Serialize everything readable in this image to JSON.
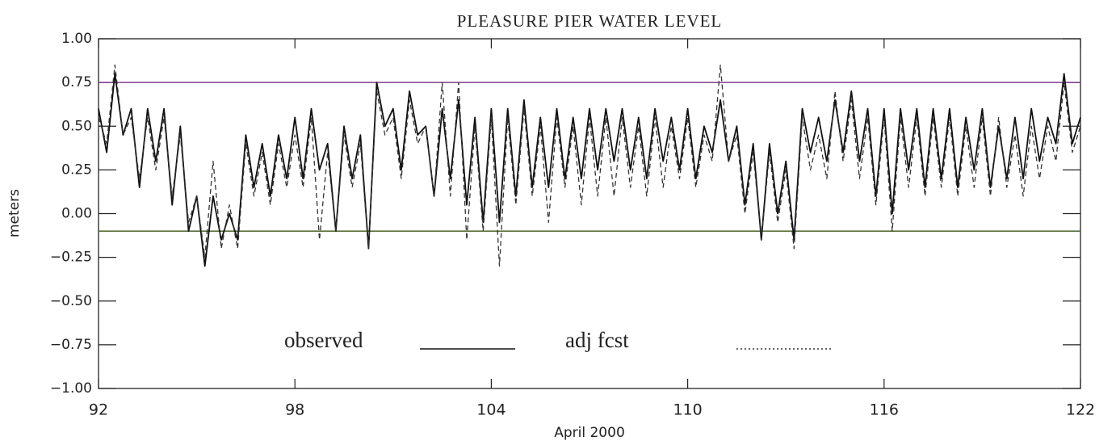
{
  "chart_data": {
    "type": "line",
    "title": "PLEASURE PIER WATER LEVEL",
    "x_label": "April 2000",
    "y_label": "meters",
    "xlim": [
      92,
      122
    ],
    "xticks": [
      92,
      98,
      104,
      110,
      116,
      122
    ],
    "ylim": [
      -1,
      1
    ],
    "yticks": [
      {
        "value": -1,
        "label": "−1.00"
      },
      {
        "value": -0.75,
        "label": "−0.75"
      },
      {
        "value": -0.5,
        "label": "−0.50"
      },
      {
        "value": -0.25,
        "label": "−0.25"
      },
      {
        "value": 0,
        "label": "0.00"
      },
      {
        "value": 0.25,
        "label": "0.25"
      },
      {
        "value": 0.5,
        "label": "0.50"
      },
      {
        "value": 0.75,
        "label": "0.75"
      },
      {
        "value": 1,
        "label": "1.00"
      }
    ],
    "reference_lines": [
      {
        "value": 0.75,
        "color": "#7b3f8c"
      },
      {
        "value": -0.1,
        "color": "#5a6e3a"
      }
    ],
    "legend": "lower center",
    "x": [
      92,
      92.25,
      92.5,
      92.75,
      93,
      93.25,
      93.5,
      93.75,
      94,
      94.25,
      94.5,
      94.75,
      95,
      95.25,
      95.5,
      95.75,
      96,
      96.25,
      96.5,
      96.75,
      97,
      97.25,
      97.5,
      97.75,
      98,
      98.25,
      98.5,
      98.75,
      99,
      99.25,
      99.5,
      99.75,
      100,
      100.25,
      100.5,
      100.75,
      101,
      101.25,
      101.5,
      101.75,
      102,
      102.25,
      102.5,
      102.75,
      103,
      103.25,
      103.5,
      103.75,
      104,
      104.25,
      104.5,
      104.75,
      105,
      105.25,
      105.5,
      105.75,
      106,
      106.25,
      106.5,
      106.75,
      107,
      107.25,
      107.5,
      107.75,
      108,
      108.25,
      108.5,
      108.75,
      109,
      109.25,
      109.5,
      109.75,
      110,
      110.25,
      110.5,
      110.75,
      111,
      111.25,
      111.5,
      111.75,
      112,
      112.25,
      112.5,
      112.75,
      113,
      113.25,
      113.5,
      113.75,
      114,
      114.25,
      114.5,
      114.75,
      115,
      115.25,
      115.5,
      115.75,
      116,
      116.25,
      116.5,
      116.75,
      117,
      117.25,
      117.5,
      117.75,
      118,
      118.25,
      118.5,
      118.75,
      119,
      119.25,
      119.5,
      119.75,
      120,
      120.25,
      120.5,
      120.75,
      121,
      121.25,
      121.5,
      121.75,
      122
    ],
    "series": [
      {
        "name": "observed",
        "color": "#111111",
        "dash": "solid",
        "values": [
          0.6,
          0.35,
          0.8,
          0.45,
          0.6,
          0.15,
          0.6,
          0.3,
          0.6,
          0.05,
          0.5,
          -0.1,
          0.1,
          -0.3,
          0.1,
          -0.15,
          0.0,
          -0.15,
          0.45,
          0.15,
          0.4,
          0.1,
          0.45,
          0.2,
          0.55,
          0.2,
          0.6,
          0.25,
          0.4,
          -0.1,
          0.5,
          0.2,
          0.45,
          -0.2,
          0.75,
          0.5,
          0.6,
          0.25,
          0.7,
          0.45,
          0.5,
          0.1,
          0.6,
          0.2,
          0.65,
          0.05,
          0.55,
          -0.05,
          0.6,
          -0.05,
          0.6,
          0.1,
          0.65,
          0.15,
          0.55,
          0.15,
          0.6,
          0.2,
          0.55,
          0.2,
          0.6,
          0.25,
          0.6,
          0.3,
          0.6,
          0.25,
          0.55,
          0.2,
          0.6,
          0.3,
          0.55,
          0.25,
          0.6,
          0.2,
          0.5,
          0.35,
          0.65,
          0.3,
          0.5,
          0.05,
          0.4,
          -0.15,
          0.4,
          0.0,
          0.3,
          -0.15,
          0.6,
          0.35,
          0.55,
          0.3,
          0.65,
          0.35,
          0.7,
          0.3,
          0.6,
          0.1,
          0.6,
          0.0,
          0.6,
          0.25,
          0.6,
          0.15,
          0.6,
          0.2,
          0.6,
          0.15,
          0.55,
          0.25,
          0.6,
          0.15,
          0.5,
          0.2,
          0.55,
          0.2,
          0.6,
          0.3,
          0.55,
          0.4,
          0.8,
          0.4,
          0.55
        ]
      },
      {
        "name": "adj fcst",
        "color": "#333333",
        "dash": "dashed",
        "values": [
          0.55,
          0.4,
          0.85,
          0.45,
          0.55,
          0.2,
          0.55,
          0.25,
          0.55,
          0.1,
          0.45,
          -0.05,
          0.1,
          -0.25,
          0.3,
          -0.2,
          0.05,
          -0.2,
          0.4,
          0.1,
          0.35,
          0.05,
          0.4,
          0.15,
          0.45,
          0.15,
          0.55,
          -0.15,
          0.35,
          -0.1,
          0.45,
          0.15,
          0.4,
          -0.2,
          0.7,
          0.45,
          0.55,
          0.2,
          0.65,
          0.4,
          0.5,
          0.1,
          0.75,
          0.1,
          0.75,
          -0.15,
          0.5,
          -0.1,
          0.55,
          -0.3,
          0.55,
          0.05,
          0.6,
          0.1,
          0.5,
          -0.05,
          0.55,
          0.15,
          0.5,
          0.05,
          0.55,
          0.1,
          0.55,
          0.1,
          0.55,
          0.15,
          0.5,
          0.1,
          0.55,
          0.15,
          0.5,
          0.2,
          0.55,
          0.15,
          0.45,
          0.3,
          0.85,
          0.3,
          0.45,
          0.0,
          0.35,
          -0.15,
          0.35,
          -0.05,
          0.25,
          -0.2,
          0.55,
          0.25,
          0.45,
          0.2,
          0.7,
          0.3,
          0.65,
          0.2,
          0.55,
          0.05,
          0.55,
          -0.1,
          0.55,
          0.15,
          0.55,
          0.1,
          0.55,
          0.15,
          0.55,
          0.1,
          0.5,
          0.15,
          0.55,
          0.1,
          0.55,
          0.15,
          0.45,
          0.1,
          0.5,
          0.2,
          0.5,
          0.3,
          0.75,
          0.35,
          0.5
        ]
      }
    ]
  }
}
